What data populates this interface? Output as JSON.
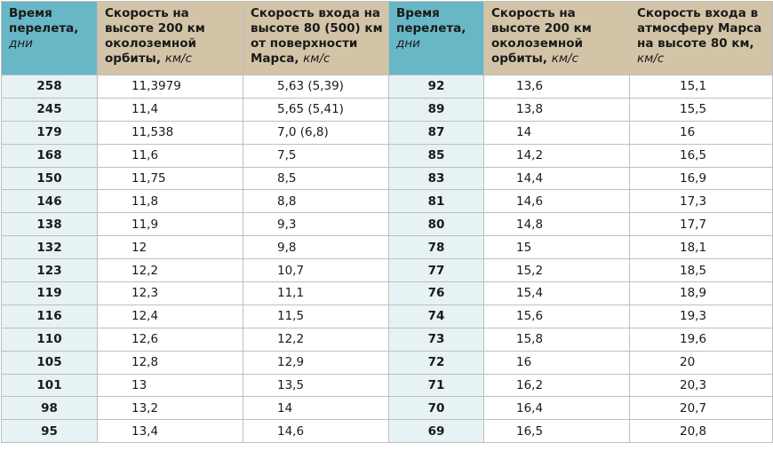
{
  "headers": [
    {
      "main": "Время перелета,",
      "unit": "дни"
    },
    {
      "main": "Скорость на высоте 200 км околоземной орбиты,",
      "unit": "км/с"
    },
    {
      "main": "Скорость входа на высоте 80 (500) км от поверхности Марса,",
      "unit": "км/с"
    },
    {
      "main": "Время перелета,",
      "unit": "дни"
    },
    {
      "main": "Скорость на высоте 200 км околоземной орбиты,",
      "unit": "км/с"
    },
    {
      "main": "Скорость входа в атмосферу Марса на высоте 80 км,",
      "unit": "км/с"
    }
  ],
  "rows": [
    [
      "258",
      "11,3979",
      "5,63 (5,39)",
      "92",
      "13,6",
      "15,1"
    ],
    [
      "245",
      "11,4",
      "5,65 (5,41)",
      "89",
      "13,8",
      "15,5"
    ],
    [
      "179",
      "11,538",
      "7,0 (6,8)",
      "87",
      "14",
      "16"
    ],
    [
      "168",
      "11,6",
      "7,5",
      "85",
      "14,2",
      "16,5"
    ],
    [
      "150",
      "11,75",
      "8,5",
      "83",
      "14,4",
      "16,9"
    ],
    [
      "146",
      "11,8",
      "8,8",
      "81",
      "14,6",
      "17,3"
    ],
    [
      "138",
      "11,9",
      "9,3",
      "80",
      "14,8",
      "17,7"
    ],
    [
      "132",
      "12",
      "9,8",
      "78",
      "15",
      "18,1"
    ],
    [
      "123",
      "12,2",
      "10,7",
      "77",
      "15,2",
      "18,5"
    ],
    [
      "119",
      "12,3",
      "11,1",
      "76",
      "15,4",
      "18,9"
    ],
    [
      "116",
      "12,4",
      "11,5",
      "74",
      "15,6",
      "19,3"
    ],
    [
      "110",
      "12,6",
      "12,2",
      "73",
      "15,8",
      "19,6"
    ],
    [
      "105",
      "12,8",
      "12,9",
      "72",
      "16",
      "20"
    ],
    [
      "101",
      "13",
      "13,5",
      "71",
      "16,2",
      "20,3"
    ],
    [
      "98",
      "13,2",
      "14",
      "70",
      "16,4",
      "20,7"
    ],
    [
      "95",
      "13,4",
      "14,6",
      "69",
      "16,5",
      "20,8"
    ]
  ]
}
